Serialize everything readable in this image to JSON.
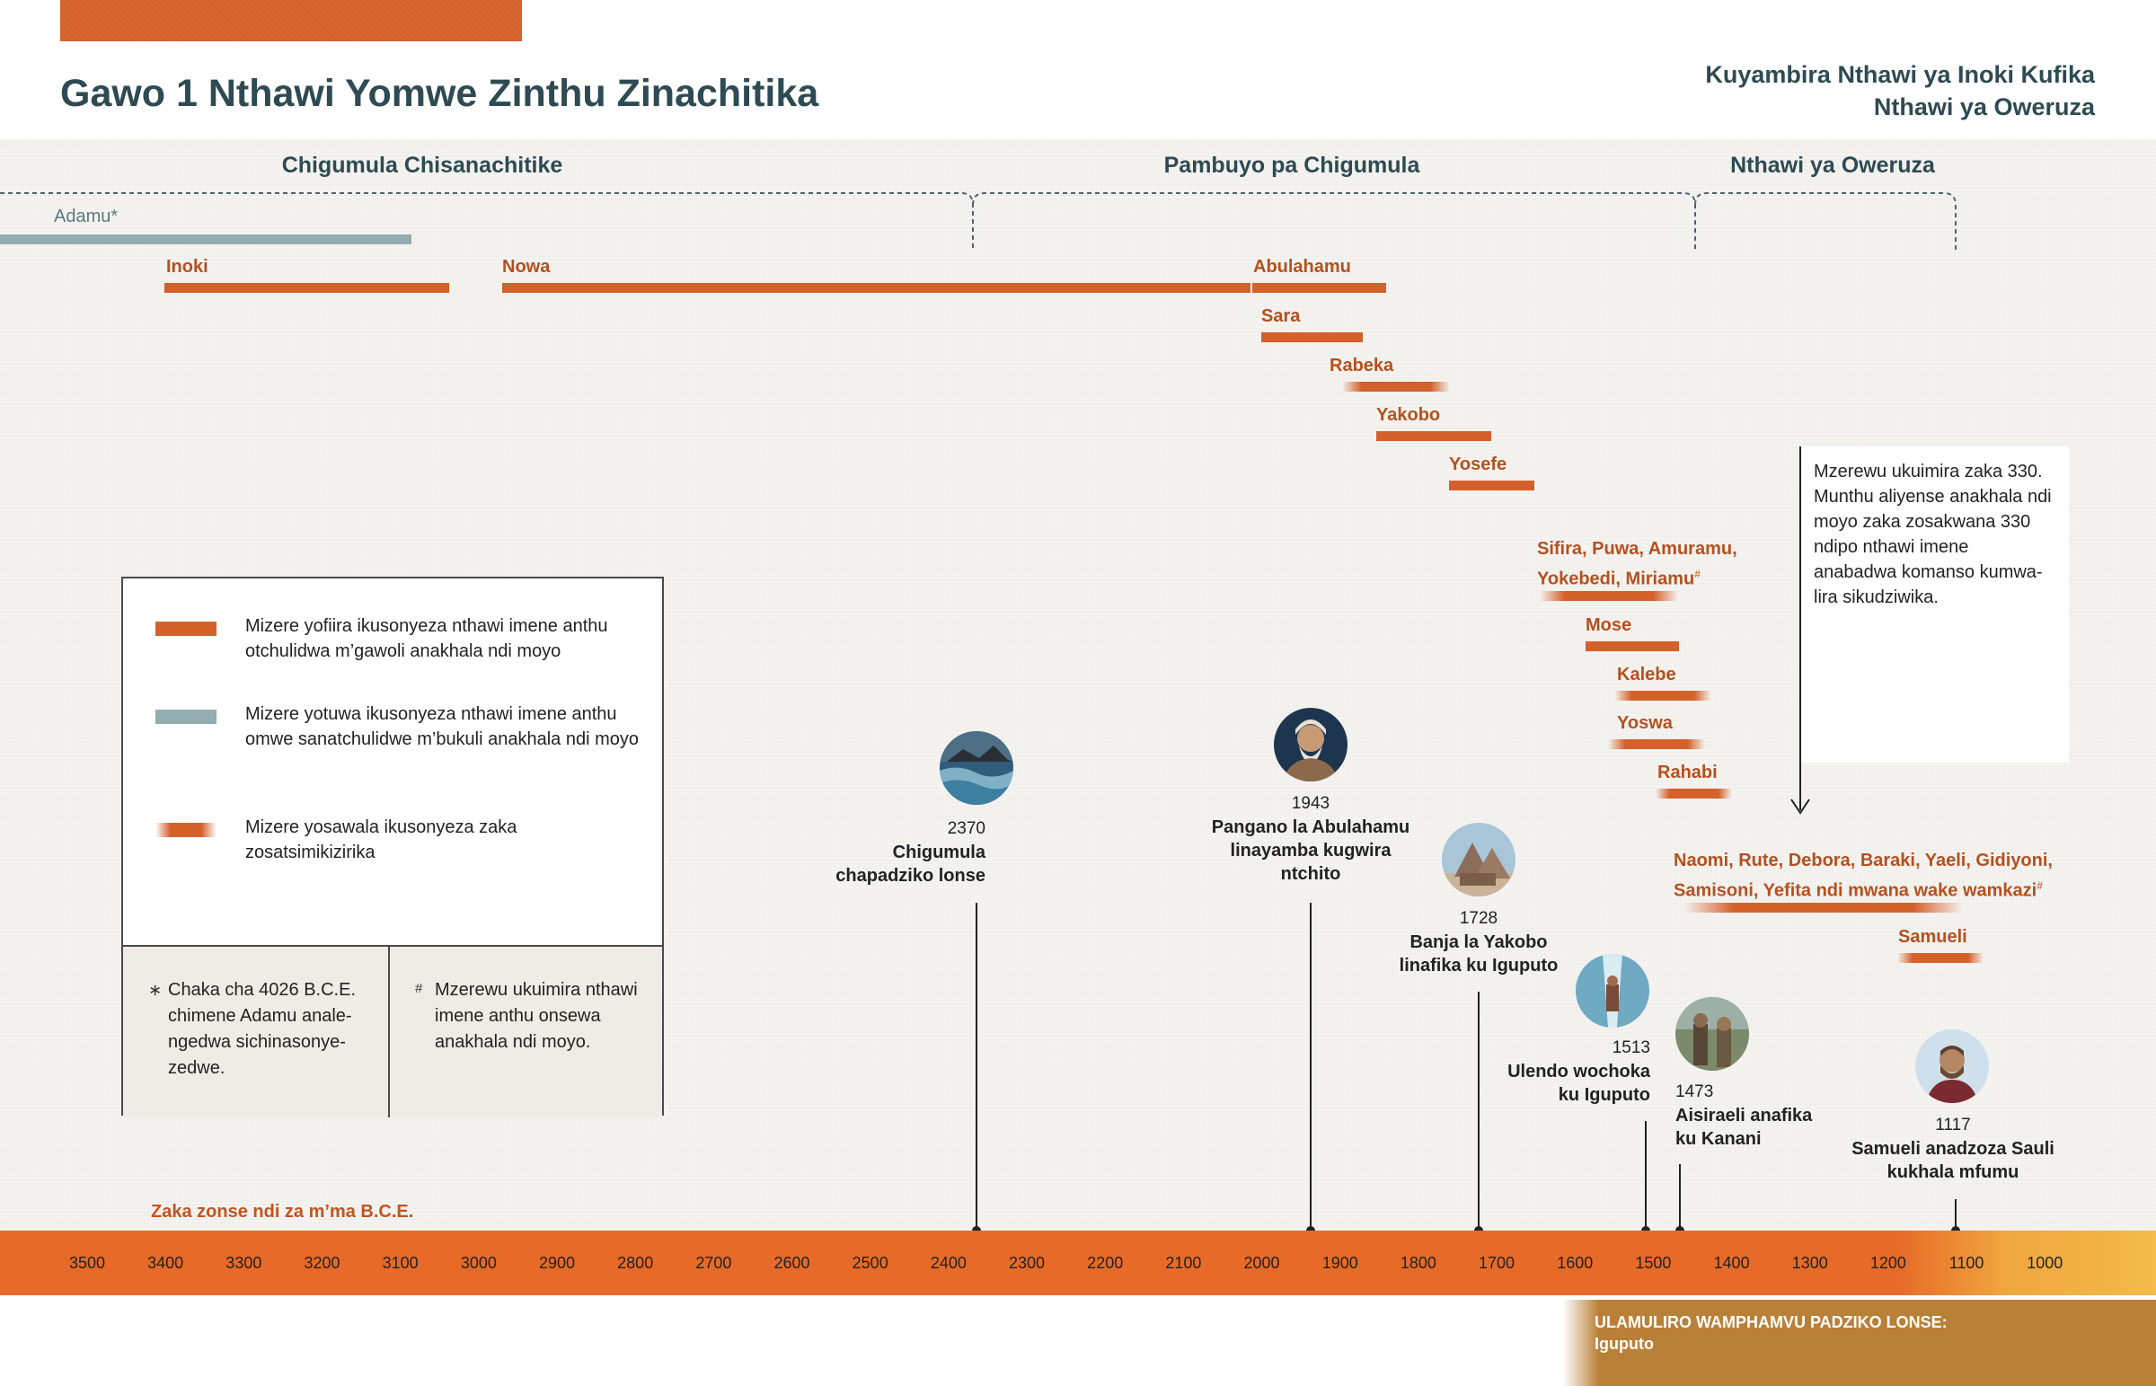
{
  "header": {
    "title": "Gawo 1 Nthawi Yomwe Zinthu Zinachitika",
    "subtitle_line1": "Kuyambira Nthawi ya Inoki Kufika",
    "subtitle_line2": "Nthawi ya Oweruza"
  },
  "eras": [
    {
      "label": "Chigumula Chisanachitike"
    },
    {
      "label": "Pambuyo pa Chigumula"
    },
    {
      "label": "Nthawi ya Oweruza"
    }
  ],
  "people": {
    "adamu": "Adamu*",
    "inoki": "Inoki",
    "nowa": "Nowa",
    "abulahamu": "Abulahamu",
    "sara": "Sara",
    "rabeka": "Rabeka",
    "yakobo": "Yakobo",
    "yosefe": "Yosefe",
    "sifira_line1": "Sifira, Puwa, Amuramu,",
    "sifira_line2": "Yokebedi, Miriamu",
    "mose": "Mose",
    "kalebe": "Kalebe",
    "yoswa": "Yoswa",
    "rahabi": "Rahabi",
    "naomi_line1": "Naomi, Rute, Debora, Baraki, Yaeli, Gidiyoni,",
    "naomi_line2": "Samisoni, Yefita ndi mwana wake wamkazi",
    "samueli": "Samueli",
    "hash_mark": "#"
  },
  "legend": {
    "item1": "Mizere yofiira ikusonyeza nthawi imene anthu otchulidwa m’gawoli anakhala ndi moyo",
    "item2": "Mizere yotuwa ikusonyeza nthawi imene anthu omwe sanatchulidwe m’bukuli anakhala ndi moyo",
    "item3": "Mizere yosawala ikusonyeza zaka zosatsimikizirika",
    "note1_mark": "∗",
    "note1": "Chaka cha 4026 B.C.E. chimene Adamu anale­ngedwa sichinasonye­zedwe.",
    "note2_mark": "#",
    "note2": "Mzerewu ukuimira ntha­wi imene anthu onsewa anakhala ndi moyo."
  },
  "callout": {
    "text": "Mzerewu ukuimira zaka 330. Munthu aliyense anakhala ndi moyo zaka zosakwa­na 330 ndipo nthawi imene anabadwa komanso kumwa­lira sikudziwika."
  },
  "events": [
    {
      "year": "2370",
      "label_line1": "Chigumula",
      "label_line2": "chapadziko lonse"
    },
    {
      "year": "1943",
      "label_line1": "Pangano la Abulahamu",
      "label_line2": "linayamba kugwira",
      "label_line3": "ntchito"
    },
    {
      "year": "1728",
      "label_line1": "Banja la Yakobo",
      "label_line2": "linafika ku Iguputo"
    },
    {
      "year": "1513",
      "label_line1": "Ulendo wochoka",
      "label_line2": "ku Iguputo"
    },
    {
      "year": "1473",
      "label_line1": "Aisiraeli anafika",
      "label_line2": "ku Kanani"
    },
    {
      "year": "1117",
      "label_line1": "Samueli anadzoza Sauli",
      "label_line2": "kukhala mfumu"
    }
  ],
  "axis": {
    "caption": "Zaka zonse ndi za m’ma B.C.E.",
    "ticks": [
      "3500",
      "3400",
      "3300",
      "3200",
      "3100",
      "3000",
      "2900",
      "2800",
      "2700",
      "2600",
      "2500",
      "2400",
      "2300",
      "2200",
      "2100",
      "2000",
      "1900",
      "1800",
      "1700",
      "1600",
      "1500",
      "1400",
      "1300",
      "1200",
      "1100",
      "1000"
    ]
  },
  "world_power": {
    "title": "ULAMULIRO WAMPHAMVU PADZIKO LONSE:",
    "name": "Iguputo"
  },
  "chart_data": {
    "type": "timeline",
    "unit": "years B.C.E.",
    "axis_range": [
      3500,
      1000
    ],
    "lifespans": [
      {
        "name": "Adamu*",
        "start": 3600,
        "end": 3096,
        "style": "gray"
      },
      {
        "name": "Inoki",
        "start": 3404,
        "end": 3039,
        "style": "red"
      },
      {
        "name": "Nowa",
        "start": 2970,
        "end": 2020,
        "style": "red"
      },
      {
        "name": "Abulahamu",
        "start": 2018,
        "end": 1843,
        "style": "red"
      },
      {
        "name": "Sara",
        "start": 2008,
        "end": 1881,
        "style": "red"
      },
      {
        "name": "Rabeka",
        "start": 1900,
        "end": 1760,
        "style": "uncertain"
      },
      {
        "name": "Yakobo",
        "start": 1858,
        "end": 1711,
        "style": "red"
      },
      {
        "name": "Yosefe",
        "start": 1767,
        "end": 1657,
        "style": "red"
      },
      {
        "name": "Sifira, Puwa, Amuramu, Yokebedi, Miriamu",
        "start": 1640,
        "end": 1465,
        "style": "uncertain"
      },
      {
        "name": "Mose",
        "start": 1593,
        "end": 1473,
        "style": "red"
      },
      {
        "name": "Kalebe",
        "start": 1553,
        "end": 1430,
        "style": "uncertain"
      },
      {
        "name": "Yoswa",
        "start": 1560,
        "end": 1440,
        "style": "uncertain"
      },
      {
        "name": "Rahabi",
        "start": 1500,
        "end": 1400,
        "style": "uncertain"
      },
      {
        "name": "Naomi, Rute, Debora, Baraki, Yaeli, Gidiyoni, Samisoni, Yefita ndi mwana wake wamkazi",
        "start": 1450,
        "end": 1120,
        "style": "uncertain"
      },
      {
        "name": "Samueli",
        "start": 1180,
        "end": 1070,
        "style": "uncertain"
      }
    ],
    "events": [
      {
        "year": 2370
      },
      {
        "year": 1943
      },
      {
        "year": 1728
      },
      {
        "year": 1513
      },
      {
        "year": 1473
      },
      {
        "year": 1117
      }
    ],
    "eras": [
      {
        "label": "Chigumula Chisanachitike",
        "end": 2370
      },
      {
        "label": "Pambuyo pa Chigumula",
        "start": 2370,
        "end": 1467
      },
      {
        "label": "Nthawi ya Oweruza",
        "start": 1467,
        "end": 1117
      }
    ]
  }
}
